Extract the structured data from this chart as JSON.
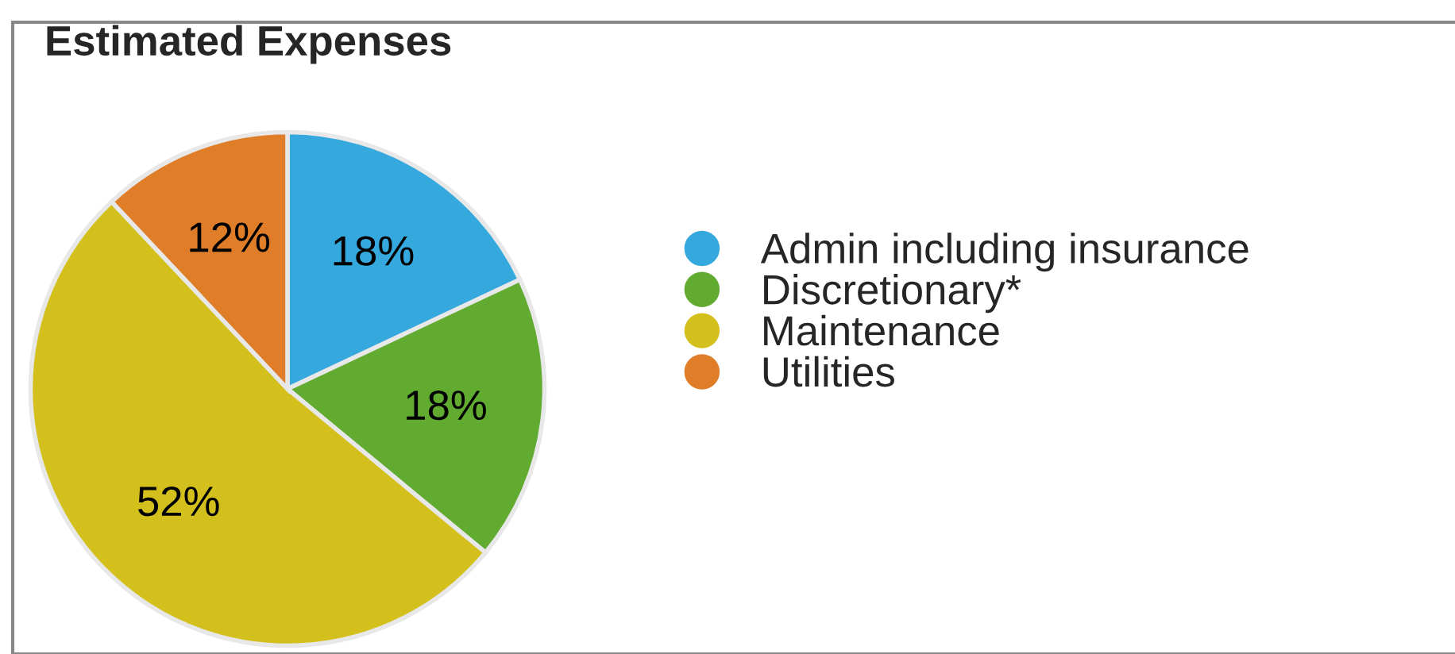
{
  "chart_data": {
    "type": "pie",
    "title": "Estimated Expenses",
    "categories": [
      "Admin including insurance",
      "Discretionary*",
      "Maintenance",
      "Utilities"
    ],
    "values": [
      18,
      18,
      52,
      12
    ],
    "colors": [
      "#35a9de",
      "#62ab31",
      "#d4c01c",
      "#df7d28"
    ],
    "value_labels": [
      "18%",
      "18%",
      "52%",
      "12%"
    ],
    "legend": "right"
  }
}
